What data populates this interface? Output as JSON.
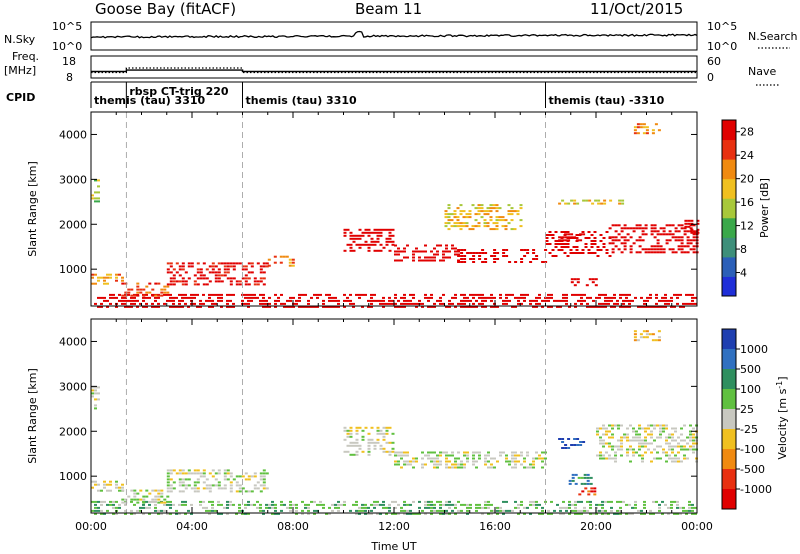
{
  "header": {
    "station": "Goose Bay (fitACF)",
    "beam": "Beam 11",
    "date": "11/Oct/2015"
  },
  "top_panels": {
    "nsky_label": "N.Sky",
    "nsky_ticks": [
      "10^5",
      "10^0"
    ],
    "nsearch_label": "N.Search",
    "nsearch_ticks": [
      "10^5",
      "10^0"
    ],
    "freq_label_1": "Freq.",
    "freq_label_2": "[MHz]",
    "freq_ticks": [
      "18",
      "8"
    ],
    "nave_label": "Nave",
    "nave_ticks": [
      "60",
      "0"
    ],
    "cpid_label": "CPID",
    "cpid_segments": [
      {
        "label": "themis (tau) 3310",
        "start_h": 0.0,
        "end_h": 1.4
      },
      {
        "label": "rbsp CT-trig 220",
        "start_h": 1.4,
        "end_h": 6.0
      },
      {
        "label": "themis (tau) 3310",
        "start_h": 6.0,
        "end_h": 18.0
      },
      {
        "label": "themis (tau) -3310",
        "start_h": 18.0,
        "end_h": 24.0
      }
    ],
    "freq_series": [
      {
        "start_h": 0.0,
        "end_h": 1.4,
        "value": 10.5
      },
      {
        "start_h": 1.4,
        "end_h": 6.0,
        "value": 11.3
      },
      {
        "start_h": 6.0,
        "end_h": 24.0,
        "value": 10.5
      }
    ],
    "nave_series": [
      {
        "start_h": 0.0,
        "end_h": 1.4,
        "value": 15
      },
      {
        "start_h": 1.4,
        "end_h": 6.0,
        "value": 30
      },
      {
        "start_h": 6.0,
        "end_h": 24.0,
        "value": 15
      }
    ]
  },
  "chart_data": [
    {
      "type": "heatmap",
      "quantity": "Power",
      "ylabel": "Slant Range [km]",
      "ylim": [
        180,
        4500
      ],
      "xlim_hours": [
        0,
        24
      ],
      "y_ticks": [
        1000,
        2000,
        3000,
        4000
      ],
      "colorbar_label": "Power [dB]",
      "colorbar_ticks": [
        4,
        8,
        12,
        16,
        20,
        24,
        28
      ],
      "colorbar_range": [
        0,
        30
      ],
      "colorbar_colors": [
        "#1f2fd8",
        "#2b5fb8",
        "#3e8f7a",
        "#3aa84a",
        "#a8c83a",
        "#f0c020",
        "#f08a10",
        "#e83010",
        "#e00000"
      ],
      "echo_regions": [
        {
          "t0": 0.0,
          "t1": 0.25,
          "r0": 2500,
          "r1": 3000,
          "level": 4
        },
        {
          "t0": 0.0,
          "t1": 1.2,
          "r0": 650,
          "r1": 900,
          "level": 6
        },
        {
          "t0": 0.0,
          "t1": 24.0,
          "r0": 180,
          "r1": 450,
          "level": 10
        },
        {
          "t0": 1.2,
          "t1": 3.0,
          "r0": 400,
          "r1": 700,
          "level": 7
        },
        {
          "t0": 3.0,
          "t1": 7.0,
          "r0": 650,
          "r1": 1150,
          "level": 8
        },
        {
          "t0": 7.0,
          "t1": 8.0,
          "r0": 1050,
          "r1": 1300,
          "level": 6
        },
        {
          "t0": 10.0,
          "t1": 12.0,
          "r0": 1400,
          "r1": 1900,
          "level": 12
        },
        {
          "t0": 12.0,
          "t1": 14.5,
          "r0": 1200,
          "r1": 1550,
          "level": 14
        },
        {
          "t0": 14.5,
          "t1": 18.0,
          "r0": 1150,
          "r1": 1450,
          "level": 12
        },
        {
          "t0": 18.0,
          "t1": 20.5,
          "r0": 1250,
          "r1": 1850,
          "level": 18
        },
        {
          "t0": 18.5,
          "t1": 19.5,
          "r0": 1600,
          "r1": 1800,
          "level": 24
        },
        {
          "t0": 19.0,
          "t1": 20.0,
          "r0": 600,
          "r1": 800,
          "level": 28
        },
        {
          "t0": 20.5,
          "t1": 24.0,
          "r0": 1350,
          "r1": 2000,
          "level": 14
        },
        {
          "t0": 23.5,
          "t1": 24.0,
          "r0": 1800,
          "r1": 2100,
          "level": 10
        },
        {
          "t0": 14.0,
          "t1": 17.0,
          "r0": 1900,
          "r1": 2450,
          "level": 5
        },
        {
          "t0": 18.5,
          "t1": 21.0,
          "r0": 2450,
          "r1": 2550,
          "level": 5
        },
        {
          "t0": 21.5,
          "t1": 22.5,
          "r0": 4000,
          "r1": 4250,
          "level": 6
        }
      ]
    },
    {
      "type": "heatmap",
      "quantity": "Velocity",
      "xlabel": "Time UT",
      "ylabel": "Slant Range [km]",
      "ylim": [
        180,
        4500
      ],
      "xlim_hours": [
        0,
        24
      ],
      "x_ticks": [
        "00:00",
        "04:00",
        "08:00",
        "12:00",
        "16:00",
        "20:00",
        "00:00"
      ],
      "y_ticks": [
        1000,
        2000,
        3000,
        4000
      ],
      "colorbar_label": "Velocity [m s^-1]",
      "colorbar_ticks": [
        1000,
        500,
        100,
        25,
        -25,
        -100,
        -500,
        -1000
      ],
      "colorbar_colors": [
        "#1f3fb0",
        "#3070c0",
        "#2f8f5f",
        "#60c040",
        "#c8c8c0",
        "#f0c020",
        "#f08a10",
        "#e83010",
        "#e00000"
      ],
      "echo_regions": [
        {
          "t0": 0.0,
          "t1": 0.25,
          "r0": 2500,
          "r1": 3000,
          "level": 4
        },
        {
          "t0": 0.0,
          "t1": 1.2,
          "r0": 650,
          "r1": 900,
          "level": 4
        },
        {
          "t0": 0.0,
          "t1": 24.0,
          "r0": 180,
          "r1": 450,
          "level": 3
        },
        {
          "t0": 1.2,
          "t1": 3.0,
          "r0": 400,
          "r1": 700,
          "level": 4
        },
        {
          "t0": 3.0,
          "t1": 7.0,
          "r0": 650,
          "r1": 1150,
          "level": 4
        },
        {
          "t0": 10.0,
          "t1": 12.0,
          "r0": 1450,
          "r1": 2100,
          "level": 4
        },
        {
          "t0": 12.0,
          "t1": 18.0,
          "r0": 1200,
          "r1": 1550,
          "level": 4
        },
        {
          "t0": 18.5,
          "t1": 19.5,
          "r0": 1600,
          "r1": 1850,
          "level": 0
        },
        {
          "t0": 18.8,
          "t1": 19.8,
          "r0": 800,
          "r1": 1050,
          "level": 2
        },
        {
          "t0": 19.3,
          "t1": 20.0,
          "r0": 600,
          "r1": 750,
          "level": 7
        },
        {
          "t0": 20.0,
          "t1": 24.0,
          "r0": 1300,
          "r1": 2150,
          "level": 4
        },
        {
          "t0": 21.5,
          "t1": 22.5,
          "r0": 4000,
          "r1": 4250,
          "level": 5
        }
      ]
    }
  ]
}
